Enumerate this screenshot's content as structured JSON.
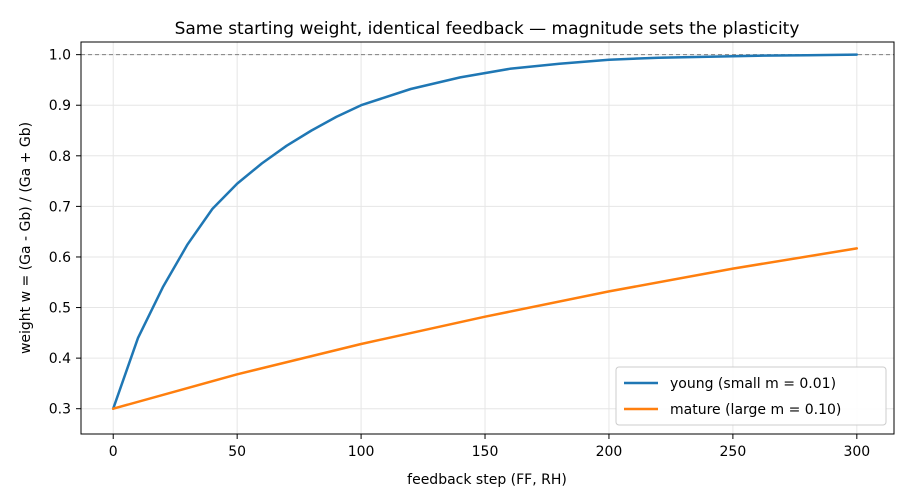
{
  "chart_data": {
    "type": "line",
    "title": "Same starting weight, identical feedback — magnitude sets the plasticity",
    "xlabel": "feedback step  (FF, RH)",
    "ylabel": "weight  w = (Ga - Gb) / (Ga + Gb)",
    "xlim": [
      -13,
      315
    ],
    "ylim": [
      0.25,
      1.025
    ],
    "xticks": [
      0,
      50,
      100,
      150,
      200,
      250,
      300
    ],
    "yticks": [
      0.3,
      0.4,
      0.5,
      0.6,
      0.7,
      0.8,
      0.9,
      1.0
    ],
    "xtick_labels": [
      "0",
      "50",
      "100",
      "150",
      "200",
      "250",
      "300"
    ],
    "ytick_labels": [
      "0.3",
      "0.4",
      "0.5",
      "0.6",
      "0.7",
      "0.8",
      "0.9",
      "1.0"
    ],
    "grid": true,
    "legend_position": "lower-right",
    "reference_line": {
      "y": 1.0,
      "style": "dashed",
      "color": "#808080"
    },
    "series": [
      {
        "name": "young  (small m = 0.01)",
        "color": "#1f77b4",
        "x": [
          0,
          10,
          20,
          30,
          40,
          50,
          60,
          70,
          80,
          90,
          100,
          120,
          140,
          160,
          180,
          200,
          220,
          240,
          260,
          280,
          300
        ],
        "y": [
          0.3,
          0.44,
          0.54,
          0.625,
          0.695,
          0.745,
          0.785,
          0.82,
          0.85,
          0.877,
          0.9,
          0.932,
          0.955,
          0.972,
          0.982,
          0.99,
          0.994,
          0.996,
          0.998,
          0.999,
          1.0
        ]
      },
      {
        "name": "mature  (large m = 0.10)",
        "color": "#ff7f0e",
        "x": [
          0,
          50,
          100,
          150,
          200,
          250,
          300
        ],
        "y": [
          0.3,
          0.368,
          0.428,
          0.482,
          0.532,
          0.577,
          0.617
        ]
      }
    ]
  }
}
